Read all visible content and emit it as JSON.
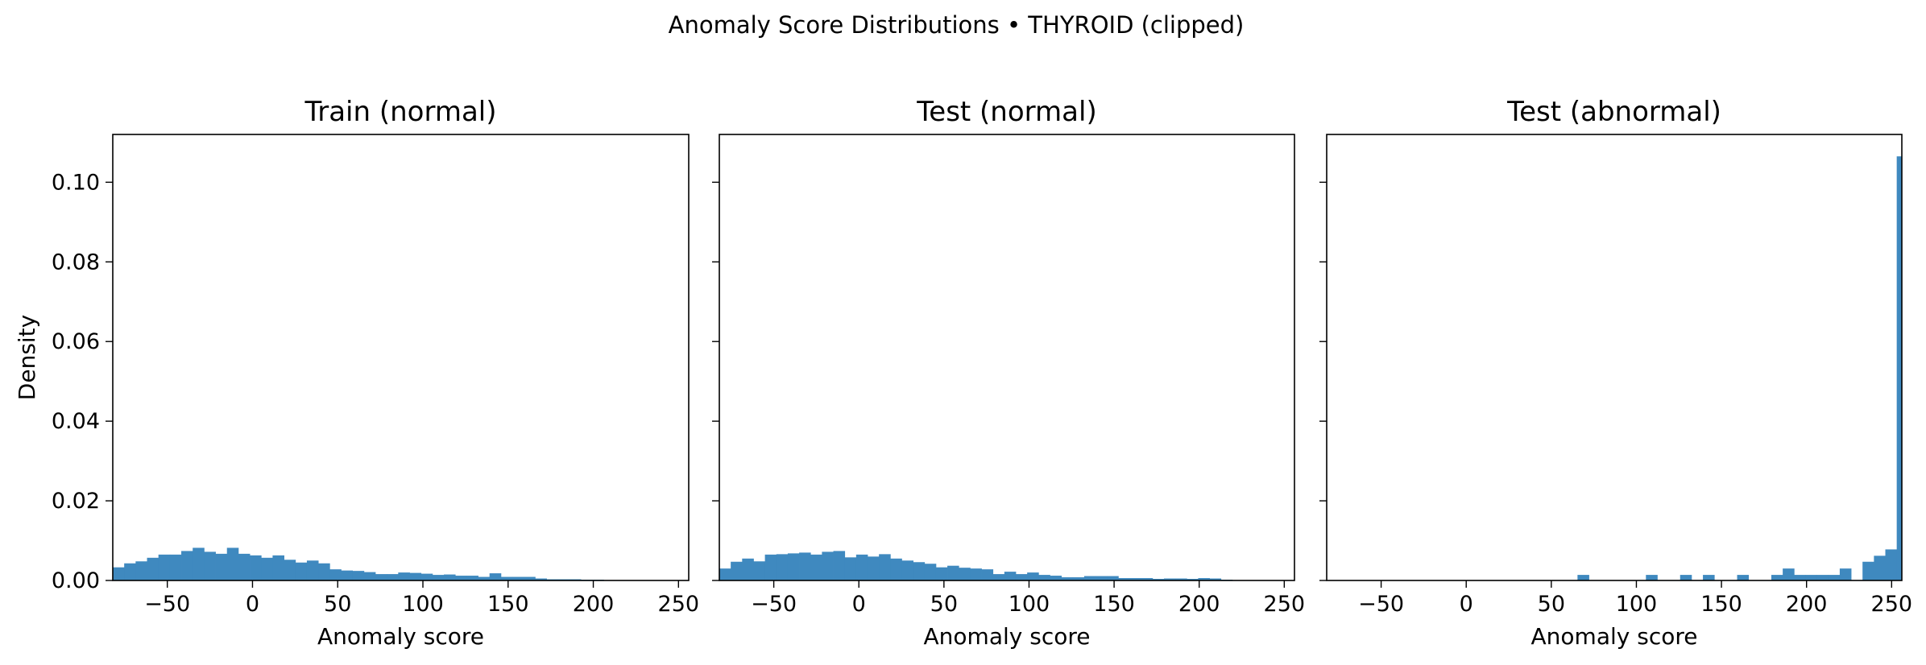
{
  "figure": {
    "title": "Anomaly Score Distributions • THYROID (clipped)"
  },
  "chart_data": [
    {
      "type": "histogram",
      "title": "Train (normal)",
      "xlabel": "Anomaly score",
      "ylabel": "Density",
      "xlim": [
        -82,
        256
      ],
      "ylim": [
        0,
        0.112
      ],
      "xticks": [
        -50,
        0,
        50,
        100,
        150,
        200,
        250
      ],
      "yticks": [
        0.0,
        0.02,
        0.04,
        0.06,
        0.08,
        0.1
      ],
      "bin_start": -82,
      "bin_width": 6.7,
      "values": [
        0.0033,
        0.0043,
        0.0048,
        0.0057,
        0.0065,
        0.0065,
        0.0074,
        0.0082,
        0.0072,
        0.0067,
        0.0082,
        0.0067,
        0.0063,
        0.0057,
        0.0063,
        0.0052,
        0.0045,
        0.005,
        0.0043,
        0.0028,
        0.0025,
        0.0024,
        0.0021,
        0.0016,
        0.0016,
        0.002,
        0.0019,
        0.0017,
        0.0014,
        0.0015,
        0.0012,
        0.0012,
        0.0009,
        0.0018,
        0.0009,
        0.0009,
        0.0009,
        0.0005,
        0.0003,
        0.0003,
        0.0003,
        0.0002,
        0.0002,
        0.0001,
        0.0001,
        0.0001,
        0.0001,
        0.0001,
        0.0,
        0.0
      ]
    },
    {
      "type": "histogram",
      "title": "Test (normal)",
      "xlabel": "Anomaly score",
      "ylabel": "Density",
      "xlim": [
        -82,
        256
      ],
      "ylim": [
        0,
        0.112
      ],
      "xticks": [
        -50,
        0,
        50,
        100,
        150,
        200,
        250
      ],
      "yticks": [
        0.0,
        0.02,
        0.04,
        0.06,
        0.08,
        0.1
      ],
      "bin_start": -82,
      "bin_width": 6.7,
      "values": [
        0.003,
        0.0047,
        0.0055,
        0.0048,
        0.0065,
        0.0066,
        0.0068,
        0.007,
        0.0065,
        0.0072,
        0.0074,
        0.0058,
        0.0065,
        0.006,
        0.0066,
        0.0055,
        0.005,
        0.0046,
        0.0042,
        0.0033,
        0.0037,
        0.0032,
        0.003,
        0.0028,
        0.0016,
        0.0022,
        0.0016,
        0.002,
        0.0014,
        0.0012,
        0.0008,
        0.0008,
        0.0011,
        0.0011,
        0.0011,
        0.0006,
        0.0006,
        0.0006,
        0.0004,
        0.0005,
        0.0005,
        0.0004,
        0.0006,
        0.0005,
        0.0002,
        0.0001,
        0.0,
        0.0,
        0.0,
        0.0
      ]
    },
    {
      "type": "histogram",
      "title": "Test (abnormal)",
      "xlabel": "Anomaly score",
      "ylabel": "Density",
      "xlim": [
        -82,
        256
      ],
      "ylim": [
        0,
        0.112
      ],
      "xticks": [
        -50,
        0,
        50,
        100,
        150,
        200,
        250
      ],
      "yticks": [
        0.0,
        0.02,
        0.04,
        0.06,
        0.08,
        0.1
      ],
      "bin_start": -82,
      "bin_width": 6.7,
      "values": [
        0.0,
        0.0,
        0.0,
        0.0,
        0.0,
        0.0,
        0.0,
        0.0,
        0.0,
        0.0,
        0.0,
        0.0,
        0.0,
        0.0,
        0.0,
        0.0,
        0.0,
        0.0,
        0.0,
        0.0,
        0.0,
        0.0,
        0.0014,
        0.0,
        0.0,
        0.0,
        0.0,
        0.0,
        0.0014,
        0.0,
        0.0,
        0.0014,
        0.0,
        0.0014,
        0.0,
        0.0,
        0.0014,
        0.0,
        0.0,
        0.0014,
        0.003,
        0.0014,
        0.0014,
        0.0014,
        0.0014,
        0.003,
        0.0,
        0.0047,
        0.0062,
        0.0078,
        0.1065
      ]
    }
  ]
}
